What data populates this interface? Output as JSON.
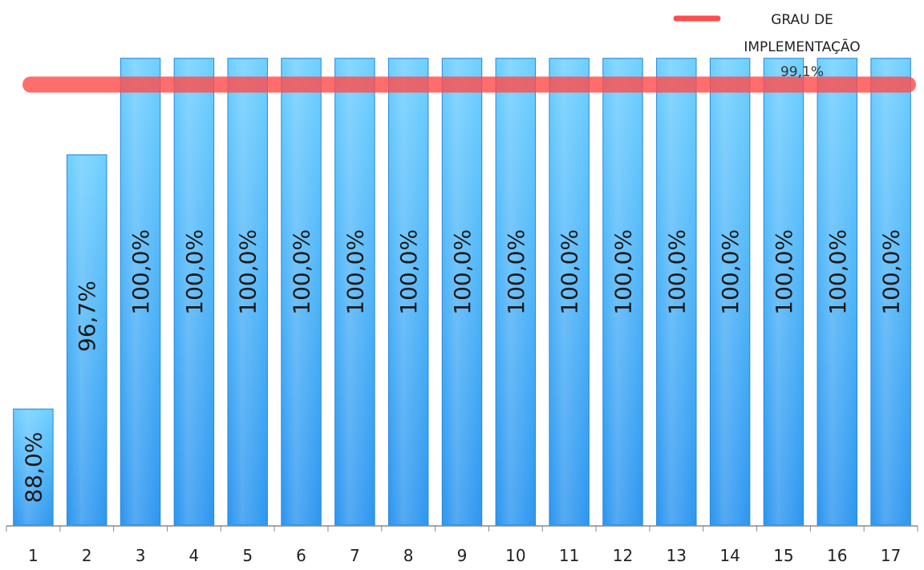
{
  "chart_data": {
    "type": "bar",
    "categories": [
      "1",
      "2",
      "3",
      "4",
      "5",
      "6",
      "7",
      "8",
      "9",
      "10",
      "11",
      "12",
      "13",
      "14",
      "15",
      "16",
      "17"
    ],
    "series": [
      {
        "values": [
          88.0,
          96.7,
          100.0,
          100.0,
          100.0,
          100.0,
          100.0,
          100.0,
          100.0,
          100.0,
          100.0,
          100.0,
          100.0,
          100.0,
          100.0,
          100.0,
          100.0
        ],
        "data_labels": [
          "88,0%",
          "96,7%",
          "100,0%",
          "100,0%",
          "100,0%",
          "100,0%",
          "100,0%",
          "100,0%",
          "100,0%",
          "100,0%",
          "100,0%",
          "100,0%",
          "100,0%",
          "100,0%",
          "100,0%",
          "100,0%",
          "100,0%"
        ],
        "color": "#3aa6f2"
      },
      {
        "name": "GRAU DE IMPLEMENTAÇÃO",
        "type": "line",
        "value": 99.1,
        "label": "99,1%",
        "color": "#ff4d4d"
      }
    ],
    "legend": {
      "position": "top-right",
      "lines": [
        "GRAU DE",
        "IMPLEMENTAÇÃO"
      ]
    },
    "ylim": [
      84,
      101.5
    ],
    "grid": false,
    "title": "",
    "xlabel": "",
    "ylabel": ""
  }
}
